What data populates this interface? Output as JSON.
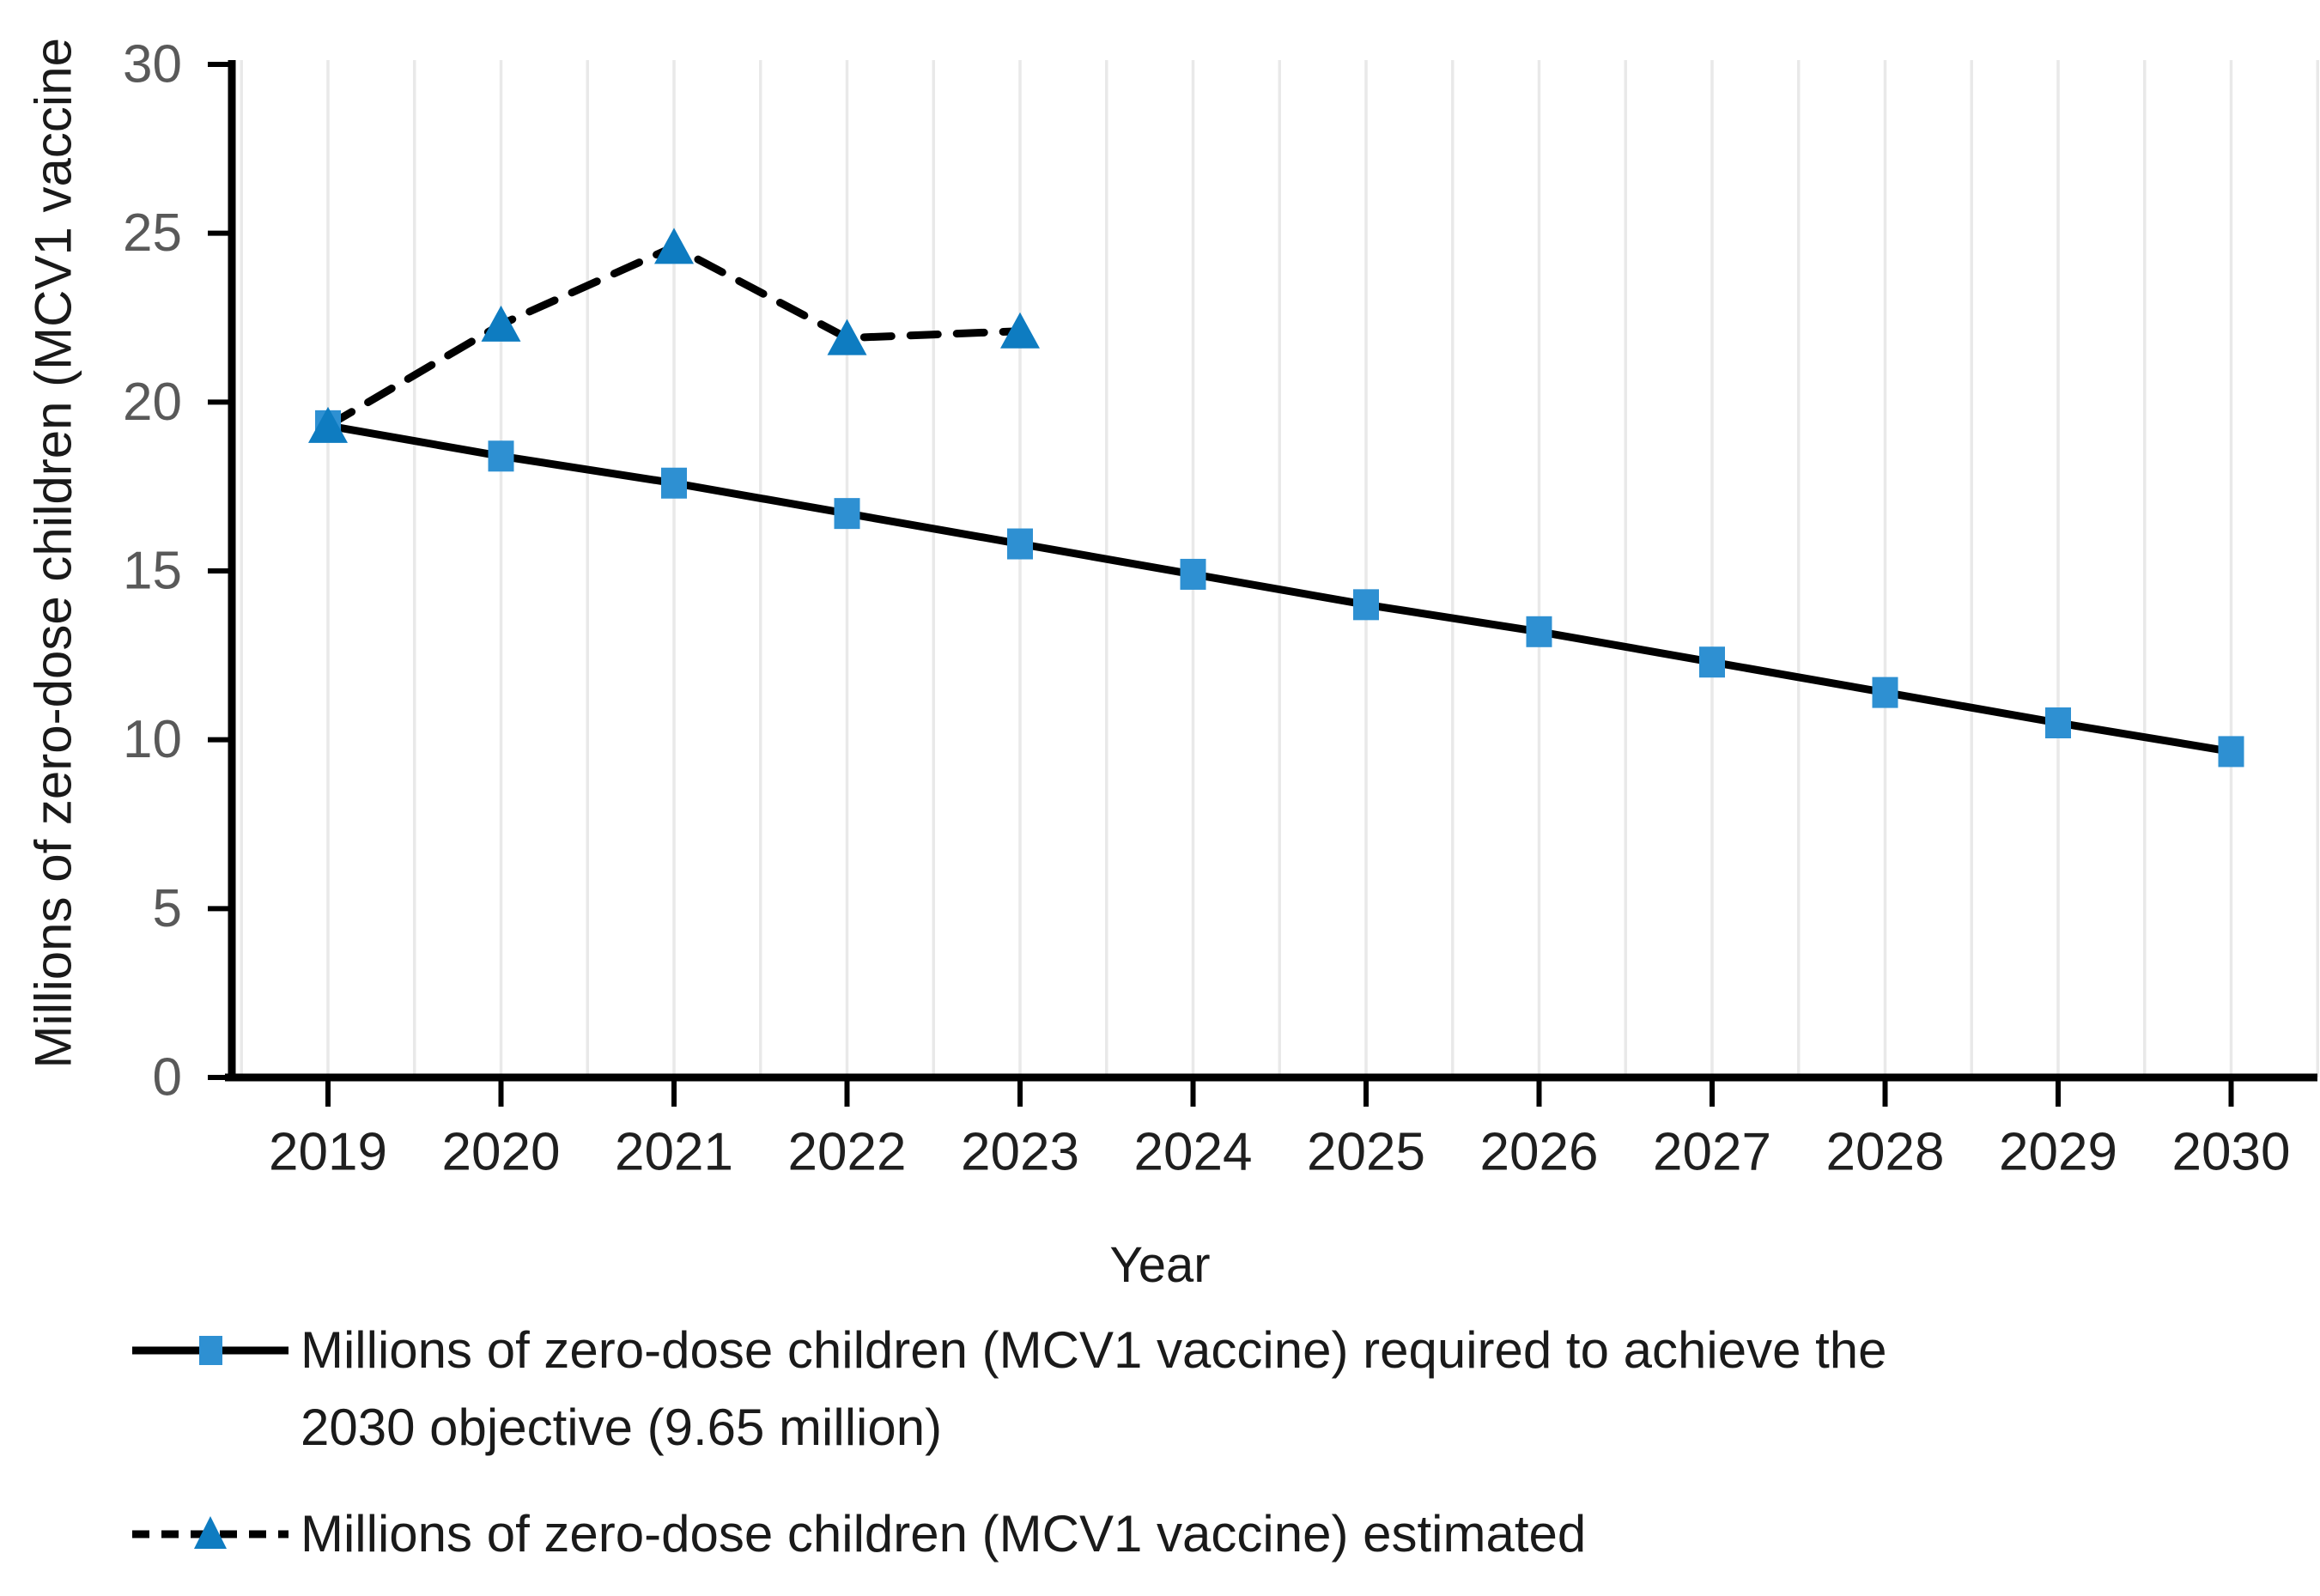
{
  "axes": {
    "y_title": "Millions of zero-dose children (MCV1 vaccine",
    "x_title": "Year"
  },
  "legend": {
    "items": [
      {
        "id": "required",
        "marker": "square",
        "line": "solid",
        "lines": [
          "Millions of zero-dose children (MCV1 vaccine) required to achieve the",
          "2030 objective (9.65 million)"
        ]
      },
      {
        "id": "estimated",
        "marker": "triangle",
        "line": "dashed",
        "lines": [
          "Millions of zero-dose children (MCV1 vaccine) estimated"
        ]
      }
    ]
  },
  "chart_data": {
    "type": "line",
    "x": [
      "2019",
      "2020",
      "2021",
      "2022",
      "2023",
      "2024",
      "2025",
      "2026",
      "2027",
      "2028",
      "2029",
      "2030"
    ],
    "series": [
      {
        "name": "Millions of zero-dose children (MCV1 vaccine) required to achieve the 2030 objective (9.65 million)",
        "marker": "square",
        "line_style": "solid",
        "values": [
          19.3,
          18.4,
          17.6,
          16.7,
          15.8,
          14.9,
          14.0,
          13.2,
          12.3,
          11.4,
          10.5,
          9.65
        ]
      },
      {
        "name": "Millions of zero-dose children (MCV1 vaccine) estimated",
        "marker": "triangle",
        "line_style": "dashed",
        "values": [
          19.3,
          22.3,
          24.6,
          21.9,
          22.1,
          null,
          null,
          null,
          null,
          null,
          null,
          null
        ]
      }
    ],
    "title": "",
    "xlabel": "Year",
    "ylabel": "Millions of zero-dose children (MCV1 vaccine",
    "ylim": [
      0,
      30
    ],
    "yticks": [
      0,
      5,
      10,
      15,
      20,
      25,
      30
    ],
    "grid": "vertical-light-half-category",
    "legend_position": "bottom-left",
    "colors": {
      "marker_square": "#2E90D2",
      "marker_triangle": "#0E7CC1",
      "line": "#000000",
      "gridline": "#E9E9E9",
      "axis": "#000000",
      "y_tick_label": "#595959",
      "x_tick_label": "#1F1F1F",
      "text": "#1A1A1A"
    }
  }
}
